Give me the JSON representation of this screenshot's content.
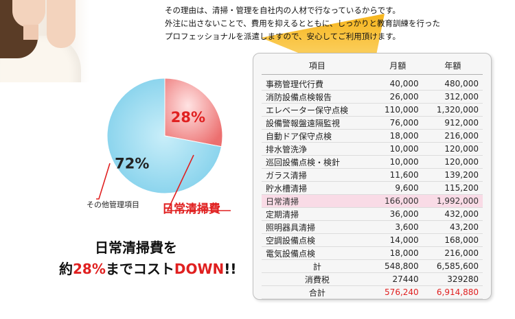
{
  "intro": {
    "line1": "その理由は、清掃・管理を自社内の人材で行なっているからです。",
    "line2": "外注に出さないことで、費用を抑えるとともに、しっかりと教育訓練を行った",
    "line3": "プロフェッショナルを派遣しますので、安心してご利用頂けます。"
  },
  "chart_data": {
    "type": "pie",
    "slices": [
      {
        "label": "日常清掃費",
        "value": 28,
        "display": "28%",
        "color": "#ee7f7f"
      },
      {
        "label": "その他管理項目",
        "value": 72,
        "display": "72%",
        "color": "#8fd6ee"
      }
    ]
  },
  "labels": {
    "other": "その他管理項目",
    "daily": "日常清掃費"
  },
  "headline": {
    "line1": "日常清掃費を",
    "prefix": "約",
    "pct": "28%",
    "mid": "までコスト",
    "down": "DOWN",
    "suffix": "!!"
  },
  "table": {
    "headers": [
      "項目",
      "月額",
      "年額"
    ],
    "rows": [
      {
        "item": "事務管理代行費",
        "monthly": "40,000",
        "annual": "480,000"
      },
      {
        "item": "消防設備点検報告",
        "monthly": "26,000",
        "annual": "312,000"
      },
      {
        "item": "エレベーター保守点検",
        "monthly": "110,000",
        "annual": "1,320,000"
      },
      {
        "item": "設備警報盤遠隔監視",
        "monthly": "76,000",
        "annual": "912,000"
      },
      {
        "item": "自動ドア保守点検",
        "monthly": "18,000",
        "annual": "216,000"
      },
      {
        "item": "排水管洗浄",
        "monthly": "10,000",
        "annual": "120,000"
      },
      {
        "item": "巡回設備点検・検針",
        "monthly": "10,000",
        "annual": "120,000"
      },
      {
        "item": "ガラス清掃",
        "monthly": "11,600",
        "annual": "139,200"
      },
      {
        "item": "貯水槽清掃",
        "monthly": "9,600",
        "annual": "115,200"
      },
      {
        "item": "日常清掃",
        "monthly": "166,000",
        "annual": "1,992,000"
      },
      {
        "item": "定期清掃",
        "monthly": "36,000",
        "annual": "432,000"
      },
      {
        "item": "照明器具清掃",
        "monthly": "3,600",
        "annual": "43,200"
      },
      {
        "item": "空調設備点検",
        "monthly": "14,000",
        "annual": "168,000"
      },
      {
        "item": "電気設備点検",
        "monthly": "18,000",
        "annual": "216,000"
      }
    ],
    "subtotal": {
      "label": "計",
      "monthly": "548,800",
      "annual": "6,585,600"
    },
    "tax": {
      "label": "消費税",
      "monthly": "27440",
      "annual": "329280"
    },
    "grand": {
      "label": "合計",
      "monthly": "576,240",
      "annual": "6,914,880"
    }
  }
}
